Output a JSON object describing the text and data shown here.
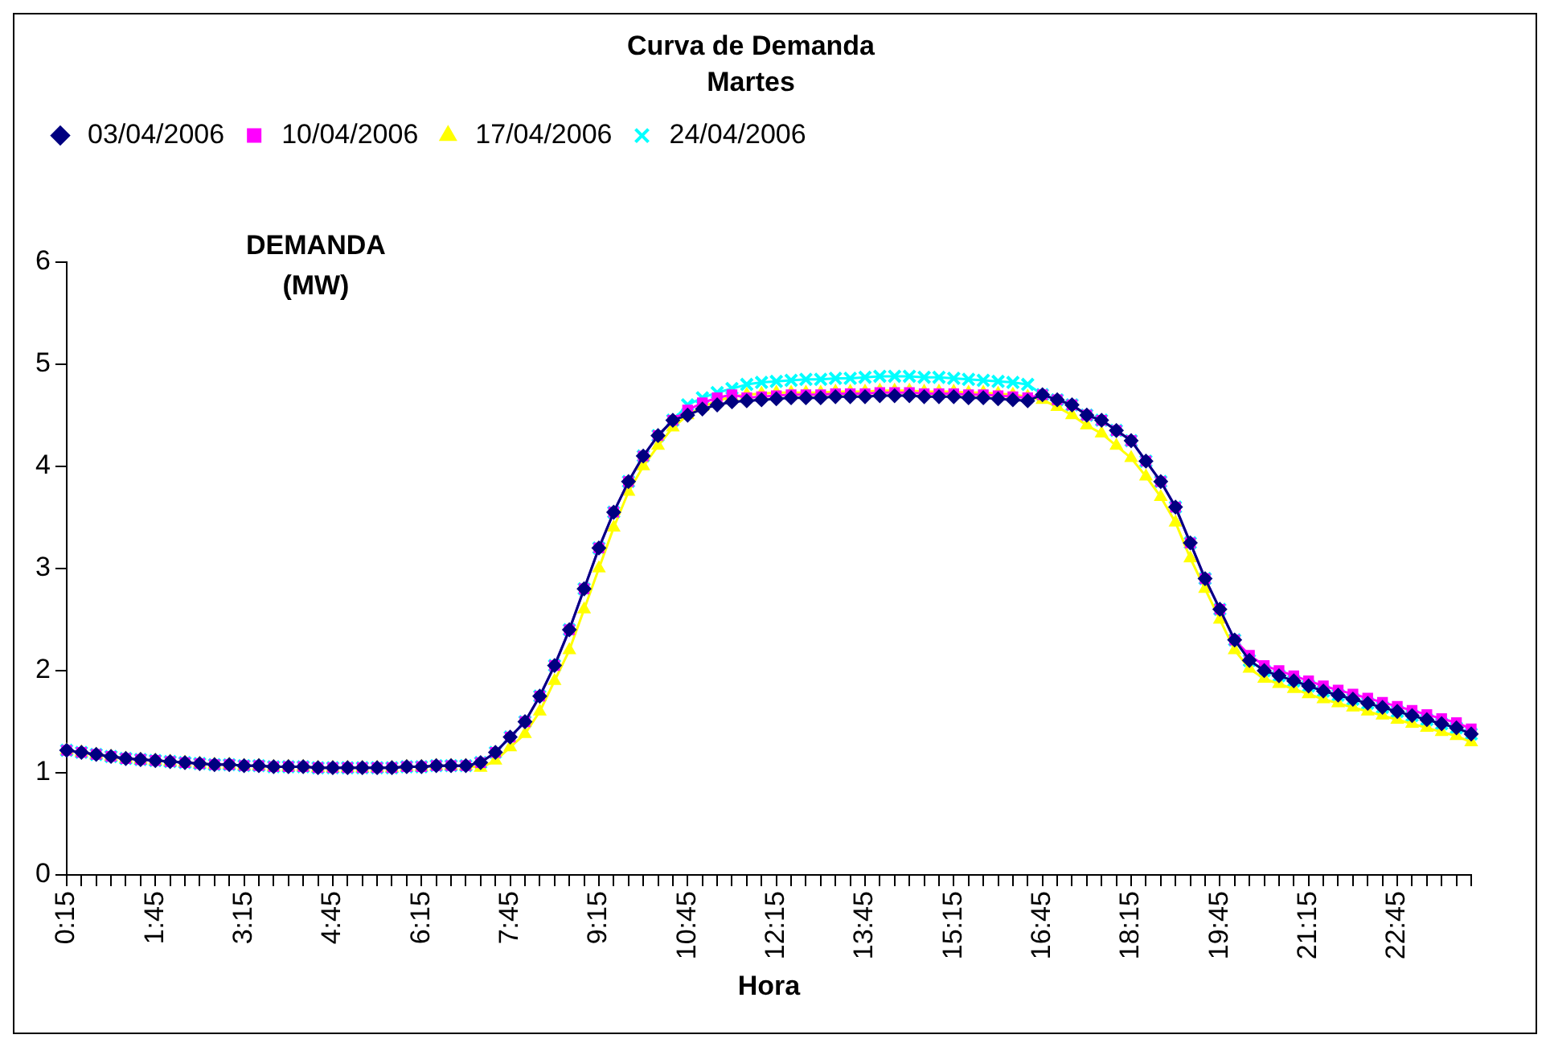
{
  "chart_data": {
    "type": "line",
    "title": "Curva de Demanda",
    "subtitle": "Martes",
    "xlabel": "Hora",
    "ylabel": "DEMANDA (MW)",
    "categories": [
      "0:15",
      null,
      null,
      null,
      null,
      null,
      "1:45",
      null,
      null,
      null,
      null,
      null,
      "3:15",
      null,
      null,
      null,
      null,
      null,
      "4:45",
      null,
      null,
      null,
      null,
      null,
      "6:15",
      null,
      null,
      null,
      null,
      null,
      "7:45",
      null,
      null,
      null,
      null,
      null,
      "9:15",
      null,
      null,
      null,
      null,
      null,
      "10:45",
      null,
      null,
      null,
      null,
      null,
      "12:15",
      null,
      null,
      null,
      null,
      null,
      "13:45",
      null,
      null,
      null,
      null,
      null,
      "15:15",
      null,
      null,
      null,
      null,
      null,
      "16:45",
      null,
      null,
      null,
      null,
      null,
      "18:15",
      null,
      null,
      null,
      null,
      null,
      "19:45",
      null,
      null,
      null,
      null,
      null,
      "21:15",
      null,
      null,
      null,
      null,
      null,
      "22:45",
      null,
      null,
      null,
      null,
      null
    ],
    "ylim": [
      0,
      6
    ],
    "yticks": [
      0,
      1,
      2,
      3,
      4,
      5,
      6
    ],
    "grid": false,
    "legend": "top",
    "line_style": "solid",
    "series": [
      {
        "name": "03/04/2006",
        "color": "#000080",
        "marker": "diamond",
        "values": [
          1.22,
          1.2,
          1.18,
          1.16,
          1.14,
          1.13,
          1.12,
          1.11,
          1.1,
          1.09,
          1.08,
          1.08,
          1.07,
          1.07,
          1.06,
          1.06,
          1.06,
          1.05,
          1.05,
          1.05,
          1.05,
          1.05,
          1.05,
          1.06,
          1.06,
          1.07,
          1.07,
          1.07,
          1.1,
          1.2,
          1.35,
          1.5,
          1.75,
          2.05,
          2.4,
          2.8,
          3.2,
          3.55,
          3.85,
          4.1,
          4.3,
          4.45,
          4.5,
          4.56,
          4.6,
          4.63,
          4.64,
          4.65,
          4.66,
          4.67,
          4.67,
          4.67,
          4.68,
          4.68,
          4.68,
          4.69,
          4.69,
          4.69,
          4.68,
          4.68,
          4.68,
          4.67,
          4.67,
          4.66,
          4.65,
          4.64,
          4.7,
          4.65,
          4.6,
          4.5,
          4.45,
          4.35,
          4.25,
          4.05,
          3.85,
          3.6,
          3.25,
          2.9,
          2.6,
          2.3,
          2.1,
          2.0,
          1.95,
          1.9,
          1.85,
          1.8,
          1.76,
          1.72,
          1.68,
          1.64,
          1.6,
          1.56,
          1.52,
          1.48,
          1.44,
          1.38
        ]
      },
      {
        "name": "10/04/2006",
        "color": "#ff00ff",
        "marker": "square",
        "values": [
          1.22,
          1.2,
          1.18,
          1.16,
          1.14,
          1.13,
          1.12,
          1.11,
          1.1,
          1.09,
          1.08,
          1.08,
          1.07,
          1.07,
          1.06,
          1.06,
          1.06,
          1.05,
          1.05,
          1.05,
          1.05,
          1.05,
          1.05,
          1.06,
          1.06,
          1.07,
          1.07,
          1.07,
          1.1,
          1.2,
          1.35,
          1.5,
          1.75,
          2.05,
          2.4,
          2.8,
          3.2,
          3.55,
          3.85,
          4.1,
          4.3,
          4.45,
          4.55,
          4.62,
          4.67,
          4.7,
          4.67,
          4.68,
          4.69,
          4.7,
          4.7,
          4.7,
          4.71,
          4.71,
          4.71,
          4.72,
          4.72,
          4.72,
          4.71,
          4.71,
          4.71,
          4.7,
          4.7,
          4.69,
          4.68,
          4.67,
          4.7,
          4.65,
          4.6,
          4.5,
          4.45,
          4.35,
          4.25,
          4.05,
          3.85,
          3.6,
          3.25,
          2.9,
          2.6,
          2.3,
          2.15,
          2.05,
          2.0,
          1.95,
          1.9,
          1.85,
          1.81,
          1.77,
          1.73,
          1.69,
          1.65,
          1.61,
          1.57,
          1.53,
          1.49,
          1.43
        ]
      },
      {
        "name": "17/04/2006",
        "color": "#ffff00",
        "marker": "triangle",
        "values": [
          1.22,
          1.2,
          1.18,
          1.16,
          1.14,
          1.13,
          1.12,
          1.11,
          1.1,
          1.09,
          1.08,
          1.08,
          1.07,
          1.07,
          1.06,
          1.06,
          1.06,
          1.05,
          1.05,
          1.05,
          1.05,
          1.05,
          1.05,
          1.06,
          1.06,
          1.07,
          1.07,
          1.07,
          1.05,
          1.12,
          1.25,
          1.38,
          1.6,
          1.9,
          2.2,
          2.6,
          3.0,
          3.4,
          3.75,
          4.0,
          4.2,
          4.38,
          4.5,
          4.58,
          4.64,
          4.68,
          4.7,
          4.71,
          4.72,
          4.72,
          4.72,
          4.72,
          4.73,
          4.73,
          4.73,
          4.74,
          4.74,
          4.74,
          4.73,
          4.73,
          4.73,
          4.72,
          4.72,
          4.71,
          4.7,
          4.68,
          4.65,
          4.58,
          4.5,
          4.4,
          4.32,
          4.2,
          4.08,
          3.9,
          3.7,
          3.45,
          3.1,
          2.8,
          2.5,
          2.2,
          2.02,
          1.92,
          1.87,
          1.82,
          1.77,
          1.72,
          1.68,
          1.64,
          1.6,
          1.56,
          1.52,
          1.48,
          1.44,
          1.4,
          1.36,
          1.3
        ]
      },
      {
        "name": "24/04/2006",
        "color": "#00ffff",
        "marker": "cross",
        "values": [
          1.22,
          1.2,
          1.18,
          1.16,
          1.14,
          1.13,
          1.12,
          1.11,
          1.1,
          1.09,
          1.08,
          1.08,
          1.07,
          1.07,
          1.06,
          1.06,
          1.06,
          1.05,
          1.05,
          1.05,
          1.05,
          1.05,
          1.05,
          1.06,
          1.06,
          1.07,
          1.07,
          1.07,
          1.1,
          1.2,
          1.35,
          1.5,
          1.75,
          2.05,
          2.4,
          2.8,
          3.2,
          3.55,
          3.85,
          4.1,
          4.3,
          4.45,
          4.6,
          4.67,
          4.72,
          4.76,
          4.8,
          4.82,
          4.83,
          4.84,
          4.85,
          4.85,
          4.86,
          4.86,
          4.87,
          4.88,
          4.88,
          4.88,
          4.87,
          4.87,
          4.86,
          4.85,
          4.84,
          4.83,
          4.82,
          4.8,
          4.7,
          4.65,
          4.6,
          4.5,
          4.45,
          4.35,
          4.25,
          4.05,
          3.85,
          3.6,
          3.25,
          2.9,
          2.6,
          2.3,
          2.1,
          2.0,
          1.95,
          1.9,
          1.85,
          1.8,
          1.76,
          1.72,
          1.68,
          1.64,
          1.6,
          1.56,
          1.52,
          1.48,
          1.44,
          1.38
        ]
      }
    ]
  }
}
